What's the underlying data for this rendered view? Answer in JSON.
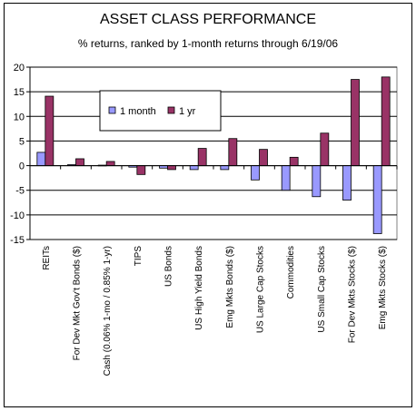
{
  "chart_data": {
    "type": "bar",
    "title": "ASSET CLASS PERFORMANCE",
    "subtitle": "% returns, ranked by 1-month returns through 6/19/06",
    "xlabel": "",
    "ylabel": "",
    "ylim": [
      -15,
      20
    ],
    "yticks": [
      -15,
      -10,
      -5,
      0,
      5,
      10,
      15,
      20
    ],
    "grid": true,
    "legend_position": "upper-left",
    "categories": [
      "REITs",
      "For Dev Mkt Gov't Bonds ($)",
      "Cash (0.06% 1-mo / 0.85% 1-yr)",
      "TIPS",
      "US Bonds",
      "US High Yield Bonds",
      "Emg Mkts Bonds ($)",
      "US Large Cap Stocks",
      "Commodities",
      "US Small Cap Stocks",
      "For Dev Mkts Stocks ($)",
      "Emg Mkts Stocks ($)"
    ],
    "series": [
      {
        "name": "1 month",
        "color": "#9999ff",
        "values": [
          2.7,
          0.2,
          0.1,
          -0.3,
          -0.5,
          -0.8,
          -0.8,
          -2.9,
          -5.0,
          -6.3,
          -7.0,
          -13.8
        ]
      },
      {
        "name": "1 yr",
        "color": "#993366",
        "values": [
          14.1,
          1.4,
          0.85,
          -1.8,
          -0.8,
          3.5,
          5.5,
          3.3,
          1.7,
          6.6,
          17.5,
          18.0
        ]
      }
    ]
  }
}
